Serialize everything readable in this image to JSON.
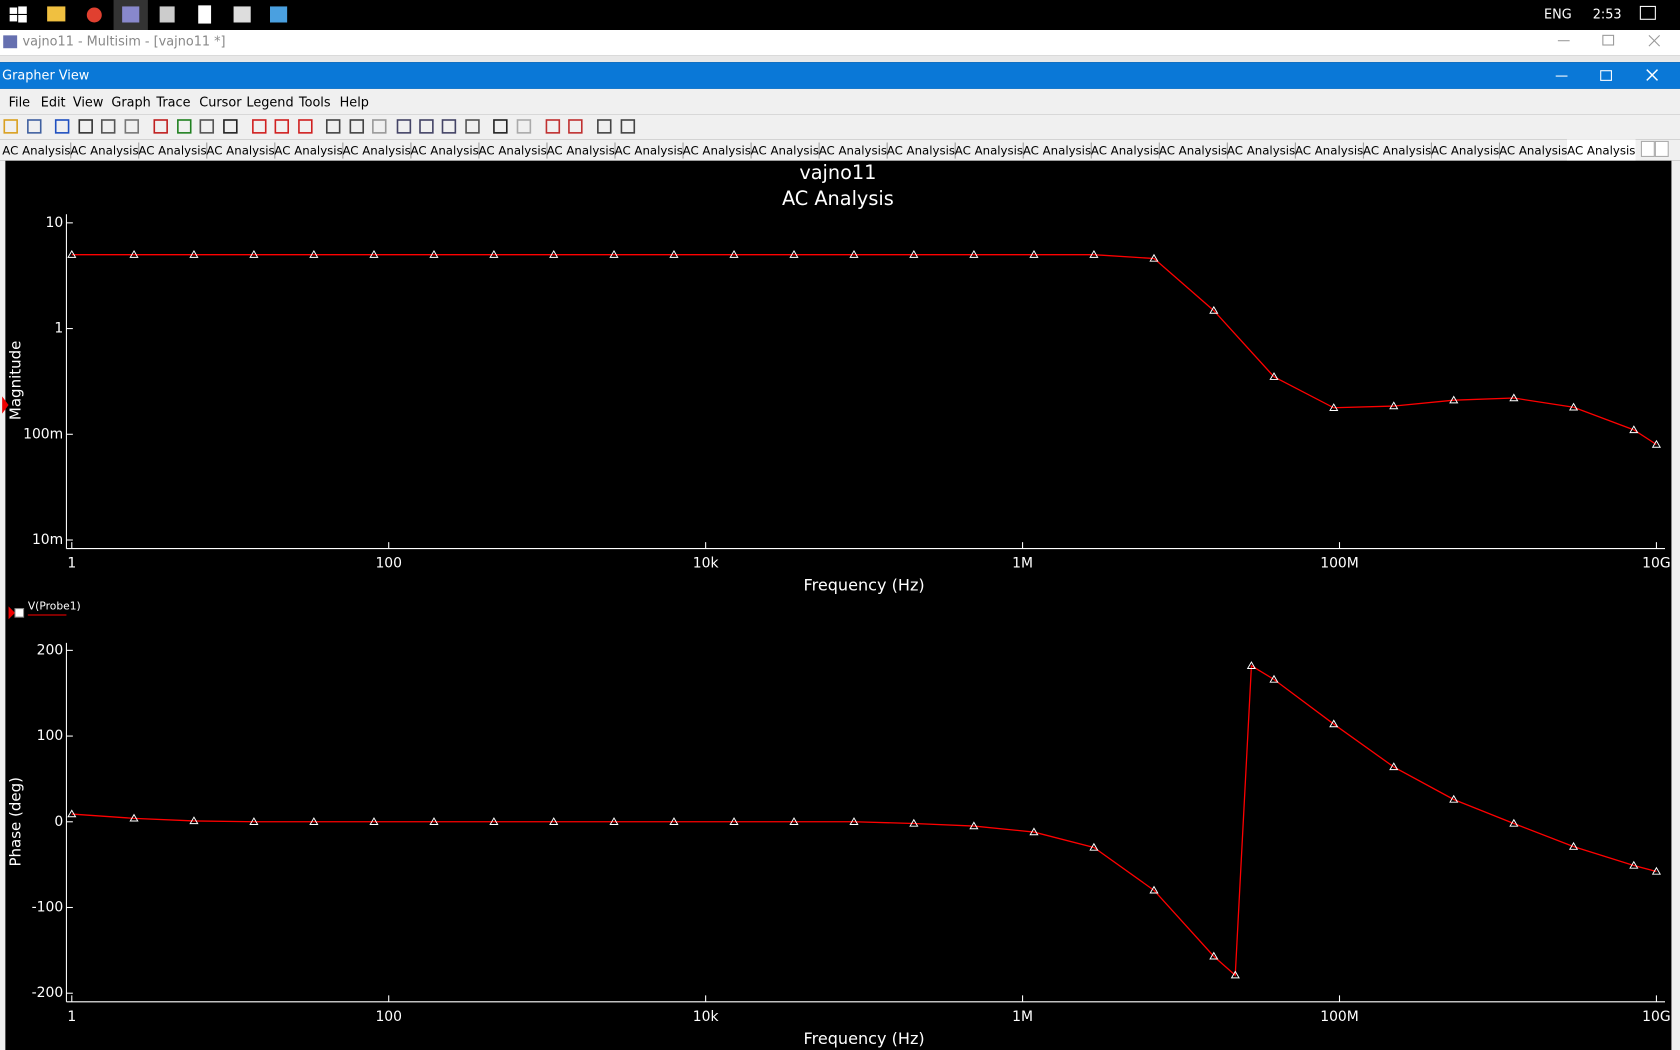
{
  "taskbar": {
    "language": "ENG",
    "time": "2:53"
  },
  "window": {
    "title": "vajno11 - Multisim - [vajno11 *]"
  },
  "grapher": {
    "title": "Grapher View",
    "menu": [
      "File",
      "Edit",
      "View",
      "Graph",
      "Trace",
      "Cursor",
      "Legend",
      "Tools",
      "Help"
    ],
    "tabs": [
      "AC Analysis",
      "AC Analysis",
      "AC Analysis",
      "AC Analysis",
      "AC Analysis",
      "AC Analysis",
      "AC Analysis",
      "AC Analysis",
      "AC Analysis",
      "AC Analysis",
      "AC Analysis",
      "AC Analysis",
      "AC Analysis",
      "AC Analysis",
      "AC Analysis",
      "AC Analysis",
      "AC Analysis",
      "AC Analysis",
      "AC Analysis",
      "AC Analysis",
      "AC Analysis",
      "AC Analysis",
      "AC Analysis",
      "AC Analysis"
    ]
  },
  "chart_data": [
    {
      "type": "line",
      "title": "vajno11",
      "subtitle": "AC Analysis",
      "xlabel": "Frequency (Hz)",
      "ylabel": "Magnitude",
      "xscale": "log",
      "yscale": "log",
      "x": [
        1,
        2.47,
        5.9,
        14.1,
        33.7,
        80.7,
        193,
        461,
        1100,
        2640,
        6310,
        15100,
        36100,
        86300,
        206000,
        493000,
        1180000,
        2820000,
        6750000,
        16100000,
        38600000,
        92000000,
        220000000,
        526000000,
        1260000000,
        3000000000,
        7200000000,
        10000000000
      ],
      "series": [
        {
          "color": "#ff0000",
          "values": [
            5,
            5,
            5,
            5,
            5,
            5,
            5,
            5,
            5,
            5,
            5,
            5,
            5,
            5,
            5,
            5,
            5,
            5,
            4.6,
            1.48,
            0.35,
            0.178,
            0.185,
            0.21,
            0.22,
            0.18,
            0.11,
            0.08
          ]
        }
      ],
      "xlim": [
        1,
        10000000000
      ],
      "xticks": [
        1,
        100,
        {
          "value": 10000,
          "label": "10k"
        },
        {
          "value": 1000000,
          "label": "1M"
        },
        {
          "value": 100000000,
          "label": "100M"
        },
        {
          "value": 10000000000,
          "label": "10G"
        }
      ],
      "ylim": [
        0.01,
        10
      ],
      "yticks": [
        10,
        1,
        {
          "value": 0.1,
          "label": "100m"
        },
        {
          "value": 0.01,
          "label": "10m"
        }
      ],
      "grid": false
    },
    {
      "type": "line",
      "xlabel": "Frequency (Hz)",
      "ylabel": "Phase (deg)",
      "xscale": "log",
      "yscale": "linear",
      "x": [
        1,
        2.47,
        5.9,
        14.1,
        33.7,
        80.7,
        193,
        461,
        1100,
        2640,
        6310,
        15100,
        36100,
        86300,
        206000,
        493000,
        1180000,
        2820000,
        6750000,
        16100000,
        22000000,
        27800000,
        38600000,
        92000000,
        220000000,
        526000000,
        1260000000,
        3000000000,
        7200000000,
        10000000000
      ],
      "series": [
        {
          "name": "V(Probe1)",
          "color": "#ff0000",
          "values": [
            9,
            4,
            1,
            0,
            0,
            0,
            0,
            0,
            0,
            0,
            0,
            0,
            0,
            0,
            -2,
            -5,
            -12,
            -30,
            -80,
            -157,
            -179,
            182,
            166,
            114,
            64,
            26,
            -2,
            -29,
            -51,
            -58
          ]
        }
      ],
      "xlim": [
        1,
        10000000000
      ],
      "xticks": [
        1,
        100,
        {
          "value": 10000,
          "label": "10k"
        },
        {
          "value": 1000000,
          "label": "1M"
        },
        {
          "value": 100000000,
          "label": "100M"
        },
        {
          "value": 10000000000,
          "label": "10G"
        }
      ],
      "ylim": [
        -200,
        200
      ],
      "yticks": [
        200,
        100,
        0,
        -100,
        -200
      ],
      "grid": false
    }
  ]
}
